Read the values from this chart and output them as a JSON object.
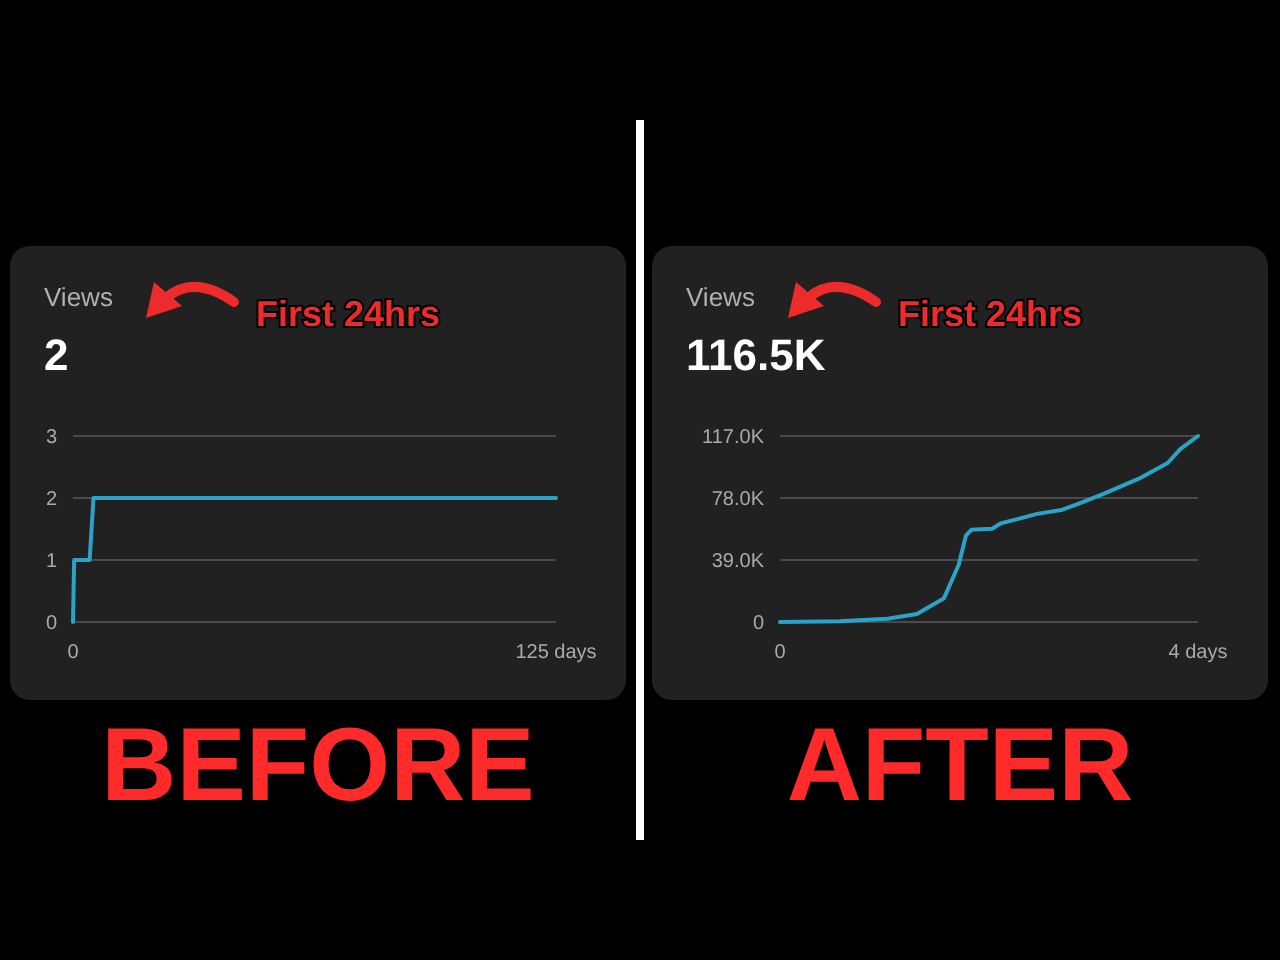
{
  "chart_data": [
    {
      "type": "line",
      "title": "Views",
      "subtitle": "2",
      "annotations": [
        "First 24hrs",
        "BEFORE"
      ],
      "x": [
        0,
        0.3,
        4.3,
        5.3,
        125
      ],
      "values": [
        0,
        1,
        1,
        2,
        2
      ],
      "color": "#2ba3c7",
      "xlim": [
        0,
        125
      ],
      "xticks": [
        0,
        {
          "value": 125,
          "label": "125 days"
        }
      ],
      "ylim": [
        0,
        3
      ],
      "yticks": [
        0,
        1,
        2,
        3
      ],
      "grid": "y"
    },
    {
      "type": "line",
      "title": "Views",
      "subtitle": "116.5K",
      "annotations": [
        "First 24hrs",
        "AFTER"
      ],
      "x": [
        0,
        0.57,
        1.03,
        1.31,
        1.57,
        1.71,
        1.78,
        1.83,
        2.03,
        2.11,
        2.29,
        2.46,
        2.69,
        2.86,
        3.09,
        3.43,
        3.71,
        3.83,
        4
      ],
      "values": [
        0,
        0.4,
        2.1,
        5,
        15,
        36,
        54.5,
        58,
        58.7,
        62,
        65,
        68,
        70.4,
        74.5,
        80.4,
        90,
        100,
        108.7,
        117
      ],
      "color": "#2ba3c7",
      "xlim": [
        0,
        4
      ],
      "xticks": [
        0,
        {
          "value": 4,
          "label": "4 days"
        }
      ],
      "ylim": [
        0,
        117
      ],
      "yticks": [
        0,
        {
          "value": 39,
          "label": "39.0K"
        },
        {
          "value": 78,
          "label": "78.0K"
        },
        {
          "value": 117,
          "label": "117.0K"
        }
      ],
      "grid": "y"
    }
  ]
}
